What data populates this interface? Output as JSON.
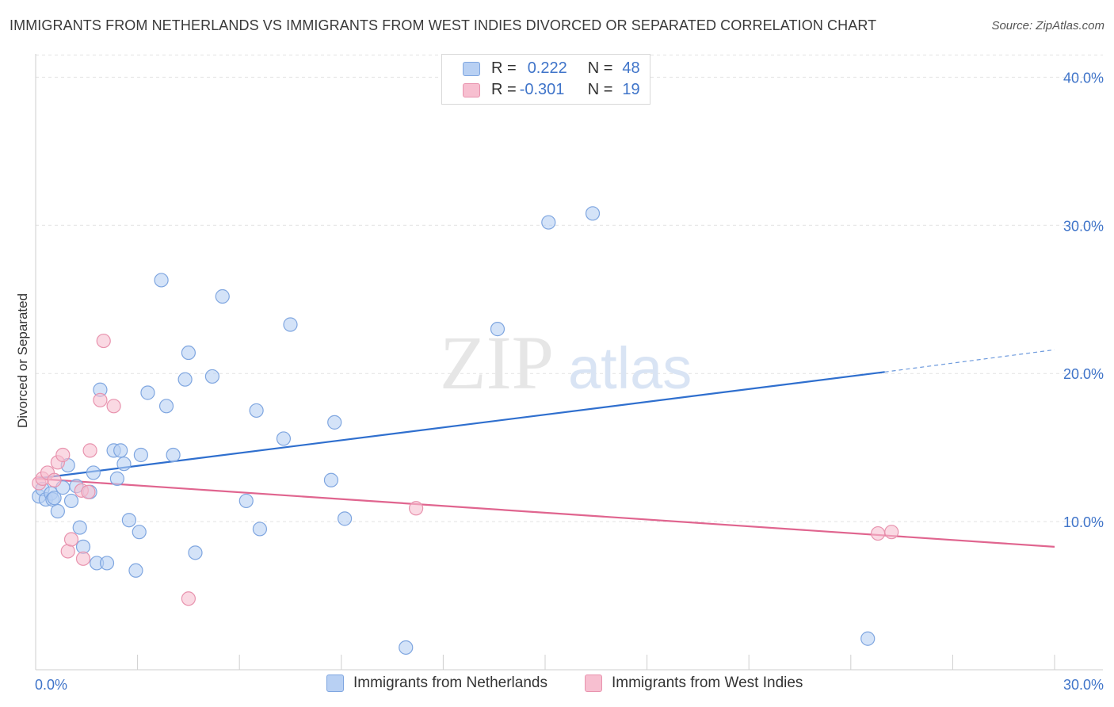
{
  "title": "IMMIGRANTS FROM NETHERLANDS VS IMMIGRANTS FROM WEST INDIES DIVORCED OR SEPARATED CORRELATION CHART",
  "source": "Source: ZipAtlas.com",
  "watermark": {
    "zip": "ZIP",
    "atlas": "atlas"
  },
  "legend": {
    "rows": [
      {
        "r_label": "R =",
        "r_value": "0.222",
        "n_label": "N =",
        "n_value": "48"
      },
      {
        "r_label": "R =",
        "r_value": "-0.301",
        "n_label": "N =",
        "n_value": "19"
      }
    ]
  },
  "colors": {
    "blue_fill": "#b8d0f3",
    "blue_stroke": "#7fa6e0",
    "blue_line": "#2f6fce",
    "pink_fill": "#f7bfd0",
    "pink_stroke": "#e893ae",
    "pink_line": "#e0658f",
    "tick_text": "#3f74c9"
  },
  "chart_data": {
    "type": "scatter",
    "title": "IMMIGRANTS FROM NETHERLANDS VS IMMIGRANTS FROM WEST INDIES DIVORCED OR SEPARATED CORRELATION CHART",
    "xlabel": "",
    "ylabel": "Divorced or Separated",
    "xlim": [
      0,
      30
    ],
    "ylim": [
      0,
      42
    ],
    "x_tick_labels": [
      "0.0%",
      "30.0%"
    ],
    "y_ticks": [
      10,
      20,
      30,
      40
    ],
    "y_tick_labels": [
      "10.0%",
      "20.0%",
      "30.0%",
      "40.0%"
    ],
    "grid": true,
    "legend_position": "top-center",
    "series": [
      {
        "name": "Immigrants from Netherlands",
        "points": [
          [
            0.1,
            11.7
          ],
          [
            0.2,
            12.2
          ],
          [
            0.3,
            11.5
          ],
          [
            0.45,
            11.9
          ],
          [
            0.5,
            11.5
          ],
          [
            0.55,
            11.6
          ],
          [
            0.65,
            10.7
          ],
          [
            0.8,
            12.3
          ],
          [
            0.95,
            13.8
          ],
          [
            1.05,
            11.4
          ],
          [
            1.2,
            12.4
          ],
          [
            1.3,
            9.6
          ],
          [
            1.4,
            8.3
          ],
          [
            1.6,
            12.0
          ],
          [
            1.7,
            13.3
          ],
          [
            1.8,
            7.2
          ],
          [
            1.9,
            18.9
          ],
          [
            2.1,
            7.2
          ],
          [
            2.3,
            14.8
          ],
          [
            2.4,
            12.9
          ],
          [
            2.5,
            14.8
          ],
          [
            2.6,
            13.9
          ],
          [
            2.75,
            10.1
          ],
          [
            2.95,
            6.7
          ],
          [
            3.05,
            9.3
          ],
          [
            3.1,
            14.5
          ],
          [
            3.3,
            18.7
          ],
          [
            3.7,
            26.3
          ],
          [
            3.85,
            17.8
          ],
          [
            4.05,
            14.5
          ],
          [
            4.4,
            19.6
          ],
          [
            4.5,
            21.4
          ],
          [
            4.7,
            7.9
          ],
          [
            5.2,
            19.8
          ],
          [
            5.5,
            25.2
          ],
          [
            6.2,
            11.4
          ],
          [
            6.5,
            17.5
          ],
          [
            6.6,
            9.5
          ],
          [
            7.3,
            15.6
          ],
          [
            7.5,
            23.3
          ],
          [
            8.7,
            12.8
          ],
          [
            8.8,
            16.7
          ],
          [
            9.1,
            10.2
          ],
          [
            10.9,
            1.5
          ],
          [
            13.6,
            23.0
          ],
          [
            15.1,
            30.2
          ],
          [
            16.4,
            30.8
          ],
          [
            24.5,
            2.1
          ]
        ],
        "trend": {
          "x": [
            0,
            25
          ],
          "y": [
            12.9,
            20.1
          ],
          "dashed_x": [
            25,
            30
          ],
          "dashed_y": [
            20.1,
            21.6
          ]
        }
      },
      {
        "name": "Immigrants from West Indies",
        "points": [
          [
            0.1,
            12.6
          ],
          [
            0.2,
            12.9
          ],
          [
            0.35,
            13.3
          ],
          [
            0.55,
            12.8
          ],
          [
            0.65,
            14.0
          ],
          [
            0.8,
            14.5
          ],
          [
            0.95,
            8.0
          ],
          [
            1.05,
            8.8
          ],
          [
            1.35,
            12.1
          ],
          [
            1.4,
            7.5
          ],
          [
            1.55,
            12.0
          ],
          [
            1.6,
            14.8
          ],
          [
            1.9,
            18.2
          ],
          [
            2.0,
            22.2
          ],
          [
            2.3,
            17.8
          ],
          [
            4.5,
            4.8
          ],
          [
            11.2,
            10.9
          ],
          [
            24.8,
            9.2
          ],
          [
            25.2,
            9.3
          ]
        ],
        "trend": {
          "x": [
            0,
            30
          ],
          "y": [
            12.9,
            8.3
          ]
        }
      }
    ]
  }
}
